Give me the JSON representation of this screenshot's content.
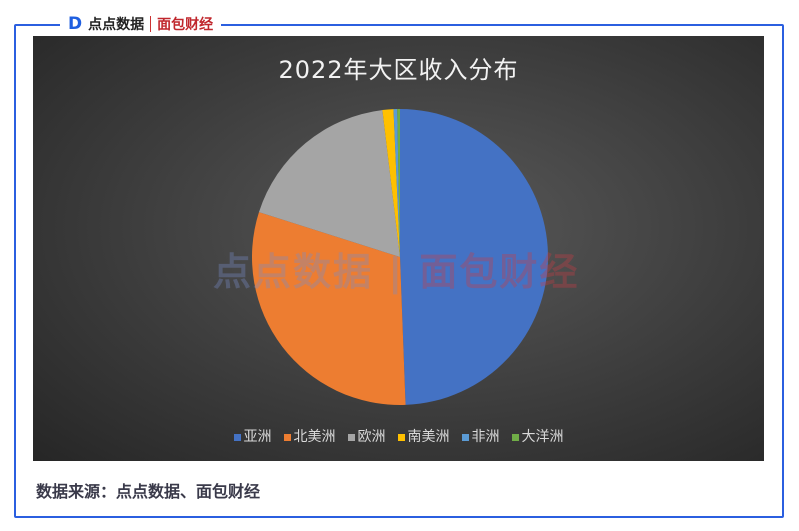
{
  "brand": {
    "logo_mark": "D",
    "name1": "点点数据",
    "name2": "面包财经"
  },
  "watermark": {
    "text1": "点点数据",
    "text2": "面包财经"
  },
  "source": "数据来源：点点数据、面包财经",
  "chart_data": {
    "type": "pie",
    "title": "2022年大区收入分布",
    "legend_position": "bottom",
    "categories": [
      "亚洲",
      "北美洲",
      "欧洲",
      "南美洲",
      "非洲",
      "大洋洲"
    ],
    "values": [
      49.4,
      30.5,
      18.2,
      1.2,
      0.4,
      0.3
    ],
    "colors": [
      "#4472c4",
      "#ed7d31",
      "#a5a5a5",
      "#ffc000",
      "#5b9bd5",
      "#70ad47"
    ],
    "start_angle_deg": 0,
    "direction": "clockwise"
  }
}
